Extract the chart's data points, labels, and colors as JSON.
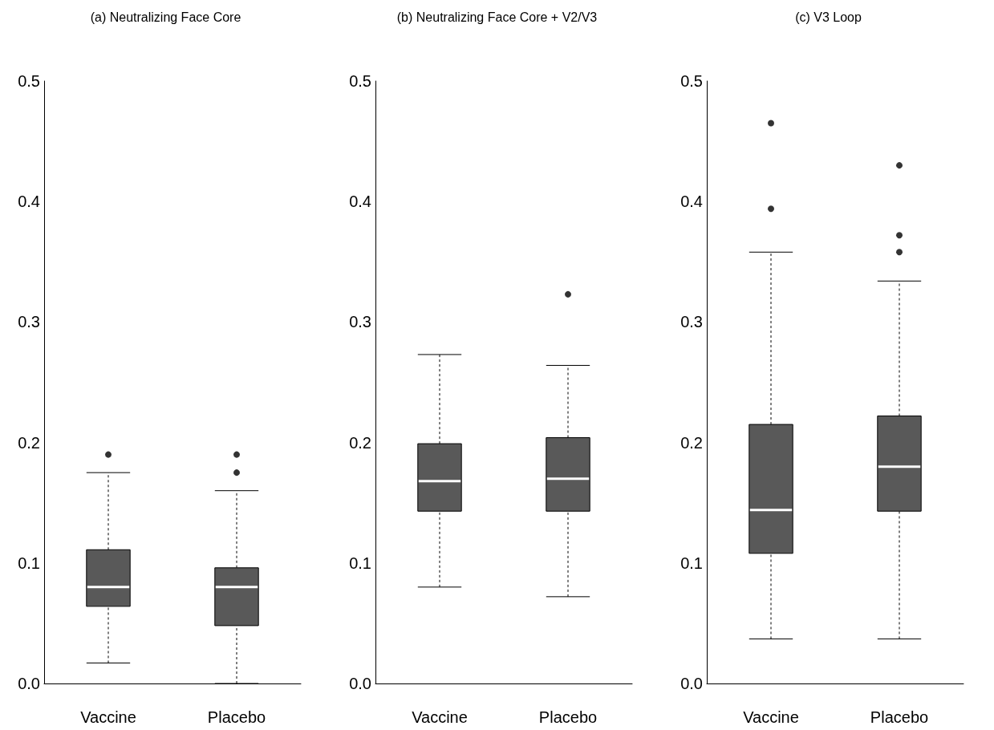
{
  "chart_data": [
    {
      "type": "box",
      "title": "(a) Neutralizing Face Core",
      "categories": [
        "Vaccine",
        "Placebo"
      ],
      "ylim": [
        0,
        0.5
      ],
      "yticks": [
        {
          "value": 0,
          "label": "0.0"
        },
        {
          "value": 0.1,
          "label": "0.1"
        },
        {
          "value": 0.2,
          "label": "0.2"
        },
        {
          "value": 0.3,
          "label": "0.3"
        },
        {
          "value": 0.4,
          "label": "0.4"
        },
        {
          "value": 0.5,
          "label": "0.5"
        }
      ],
      "grid": false,
      "series": [
        {
          "color": "#595959",
          "boxes": [
            {
              "low": 0.017,
              "q1": 0.064,
              "median": 0.08,
              "q3": 0.111,
              "high": 0.175,
              "outliers": [
                0.19
              ]
            },
            {
              "low": 0.0,
              "q1": 0.048,
              "median": 0.08,
              "q3": 0.096,
              "high": 0.16,
              "outliers": [
                0.19,
                0.175
              ]
            }
          ]
        }
      ]
    },
    {
      "type": "box",
      "title": "(b) Neutralizing Face Core + V2/V3",
      "categories": [
        "Vaccine",
        "Placebo"
      ],
      "ylim": [
        0,
        0.5
      ],
      "yticks": [
        {
          "value": 0,
          "label": "0.0"
        },
        {
          "value": 0.1,
          "label": "0.1"
        },
        {
          "value": 0.2,
          "label": "0.2"
        },
        {
          "value": 0.3,
          "label": "0.3"
        },
        {
          "value": 0.4,
          "label": "0.4"
        },
        {
          "value": 0.5,
          "label": "0.5"
        }
      ],
      "grid": false,
      "series": [
        {
          "color": "#595959",
          "boxes": [
            {
              "low": 0.08,
              "q1": 0.143,
              "median": 0.168,
              "q3": 0.199,
              "high": 0.273
            },
            {
              "low": 0.072,
              "q1": 0.143,
              "median": 0.17,
              "q3": 0.204,
              "high": 0.264,
              "outliers": [
                0.323
              ]
            }
          ]
        }
      ]
    },
    {
      "type": "box",
      "title": "(c) V3 Loop",
      "categories": [
        "Vaccine",
        "Placebo"
      ],
      "ylim": [
        0,
        0.5
      ],
      "yticks": [
        {
          "value": 0,
          "label": "0.0"
        },
        {
          "value": 0.1,
          "label": "0.1"
        },
        {
          "value": 0.2,
          "label": "0.2"
        },
        {
          "value": 0.3,
          "label": "0.3"
        },
        {
          "value": 0.4,
          "label": "0.4"
        },
        {
          "value": 0.5,
          "label": "0.5"
        }
      ],
      "grid": false,
      "series": [
        {
          "color": "#595959",
          "boxes": [
            {
              "low": 0.037,
              "q1": 0.108,
              "median": 0.144,
              "q3": 0.215,
              "high": 0.358,
              "outliers": [
                0.465,
                0.394
              ]
            },
            {
              "low": 0.037,
              "q1": 0.143,
              "median": 0.18,
              "q3": 0.222,
              "high": 0.334,
              "outliers": [
                0.43,
                0.372,
                0.358
              ]
            }
          ]
        }
      ]
    }
  ]
}
